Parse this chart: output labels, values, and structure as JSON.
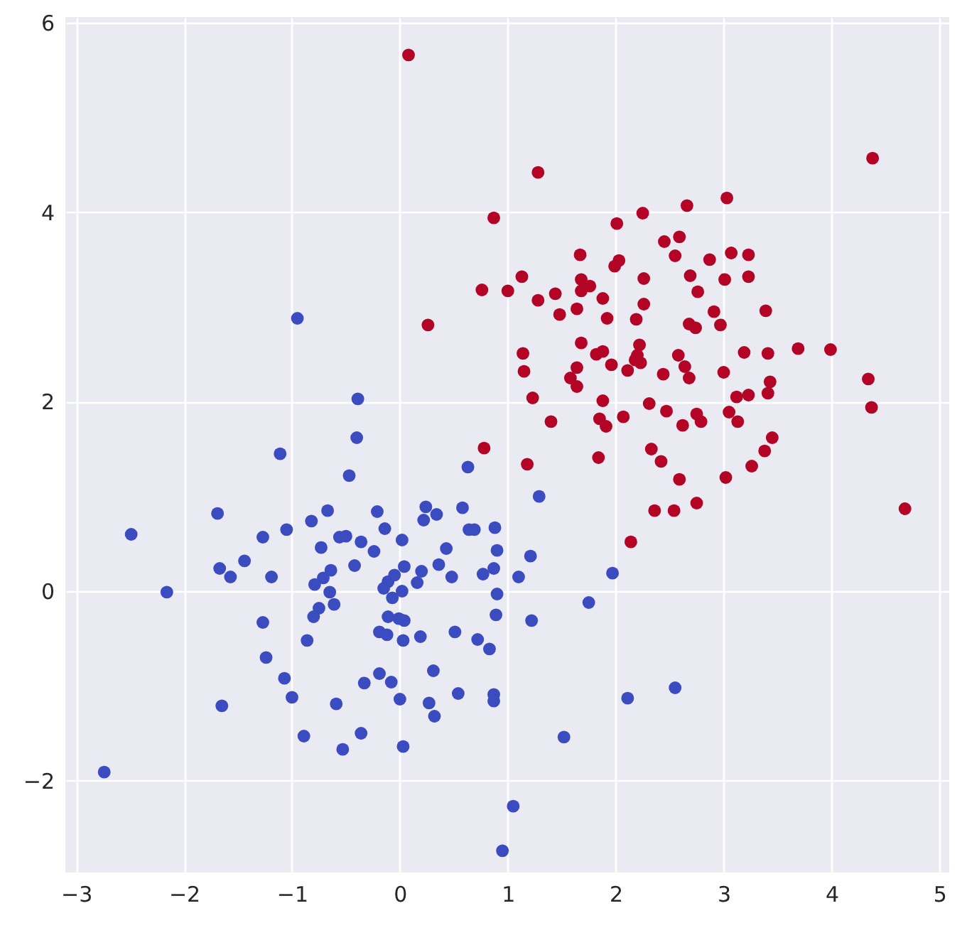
{
  "chart_data": {
    "type": "scatter",
    "xlim": [
      -3.1,
      5.09
    ],
    "ylim": [
      -2.97,
      6.06
    ],
    "xticks": [
      -3,
      -2,
      -1,
      0,
      1,
      2,
      3,
      4,
      5
    ],
    "yticks": [
      -2,
      0,
      2,
      4,
      6
    ],
    "grid": true,
    "marker": "circle",
    "series": [
      {
        "color": "#3b4cc0",
        "x": [
          -0.39,
          -0.4,
          -1.11,
          -0.47,
          -1.69,
          -0.67,
          -0.82,
          -2.49,
          -1.05,
          -1.27,
          -0.56,
          -0.5,
          -0.36,
          -0.73,
          -1.44,
          -1.67,
          -1.57,
          -1.19,
          -0.42,
          -0.64,
          -0.71,
          -0.79,
          -0.65,
          -2.16,
          -0.61,
          -0.75,
          -0.8,
          -1.27,
          -0.86,
          -1.24,
          -1.07,
          -0.33,
          -1.0,
          -1.65,
          -0.59,
          -0.89,
          -0.36,
          -0.53,
          -2.74,
          -0.95,
          -0.21,
          -0.14,
          -0.24,
          0.02,
          0.24,
          0.34,
          0.22,
          0.58,
          0.63,
          1.29,
          0.64,
          0.69,
          0.88,
          0.43,
          0.9,
          0.36,
          0.04,
          1.21,
          0.87,
          0.77,
          1.1,
          0.48,
          0.2,
          0.16,
          -0.05,
          -0.11,
          -0.15,
          0.02,
          -0.07,
          0.9,
          0.89,
          1.22,
          1.75,
          -0.11,
          -0.01,
          0.04,
          -0.19,
          -0.12,
          0.03,
          0.19,
          0.51,
          0.72,
          0.83,
          0.31,
          -0.19,
          -0.08,
          0.0,
          0.27,
          0.32,
          0.54,
          0.87,
          0.87,
          0.03,
          1.52,
          1.05,
          0.95,
          1.97,
          2.11,
          2.55
        ],
        "values": [
          2.03,
          1.62,
          1.45,
          1.22,
          0.82,
          0.85,
          0.74,
          0.6,
          0.65,
          0.57,
          0.57,
          0.58,
          0.52,
          0.46,
          0.32,
          0.24,
          0.15,
          0.15,
          0.27,
          0.22,
          0.14,
          0.07,
          -0.01,
          -0.01,
          -0.14,
          -0.18,
          -0.27,
          -0.33,
          -0.52,
          -0.7,
          -0.92,
          -0.97,
          -1.12,
          -1.21,
          -1.19,
          -1.53,
          -1.5,
          -1.67,
          -1.91,
          2.88,
          0.84,
          0.66,
          0.42,
          0.54,
          0.89,
          0.81,
          0.75,
          0.88,
          1.31,
          1.0,
          0.65,
          0.65,
          0.67,
          0.45,
          0.43,
          0.28,
          0.26,
          0.37,
          0.24,
          0.18,
          0.15,
          0.15,
          0.21,
          0.09,
          0.17,
          0.1,
          0.03,
          0.0,
          -0.07,
          -0.03,
          -0.25,
          -0.31,
          -0.12,
          -0.27,
          -0.29,
          -0.31,
          -0.43,
          -0.46,
          -0.52,
          -0.48,
          -0.43,
          -0.51,
          -0.61,
          -0.84,
          -0.87,
          -0.96,
          -1.14,
          -1.18,
          -1.32,
          -1.08,
          -1.09,
          -1.16,
          -1.64,
          -1.54,
          -2.27,
          -2.74,
          0.19,
          -1.13,
          -1.02
        ]
      },
      {
        "color": "#b40426",
        "x": [
          0.08,
          1.28,
          0.87,
          1.13,
          0.76,
          1.0,
          1.28,
          1.44,
          1.48,
          0.26,
          1.14,
          4.38,
          2.66,
          3.03,
          2.25,
          2.01,
          2.45,
          2.59,
          1.67,
          2.55,
          2.87,
          3.07,
          3.23,
          1.99,
          2.03,
          1.68,
          1.76,
          1.68,
          2.26,
          2.69,
          3.01,
          3.23,
          1.88,
          2.26,
          2.76,
          1.64,
          1.92,
          2.19,
          2.91,
          3.39,
          2.68,
          2.74,
          2.97,
          1.68,
          1.82,
          1.88,
          2.22,
          2.2,
          2.18,
          2.23,
          2.58,
          3.19,
          3.41,
          3.69,
          3.99,
          1.15,
          1.64,
          1.58,
          1.64,
          1.96,
          2.11,
          2.64,
          2.68,
          2.44,
          3.0,
          3.43,
          3.41,
          4.34,
          4.37,
          1.23,
          1.88,
          3.12,
          3.23,
          1.4,
          1.85,
          1.91,
          2.07,
          2.31,
          2.47,
          2.75,
          2.79,
          2.62,
          3.05,
          3.13,
          3.45,
          3.38,
          0.78,
          1.18,
          1.84,
          2.33,
          2.42,
          2.59,
          3.02,
          3.26,
          2.36,
          2.54,
          2.75,
          4.68,
          2.14
        ],
        "values": [
          5.66,
          4.42,
          3.94,
          3.32,
          3.18,
          3.17,
          3.07,
          3.14,
          2.92,
          2.81,
          2.51,
          4.57,
          4.07,
          4.15,
          3.99,
          3.88,
          3.69,
          3.74,
          3.55,
          3.54,
          3.5,
          3.57,
          3.55,
          3.43,
          3.49,
          3.29,
          3.22,
          3.17,
          3.3,
          3.33,
          3.29,
          3.32,
          3.09,
          3.03,
          3.16,
          2.98,
          2.88,
          2.87,
          2.95,
          2.96,
          2.82,
          2.78,
          2.81,
          2.62,
          2.5,
          2.53,
          2.6,
          2.49,
          2.44,
          2.41,
          2.49,
          2.52,
          2.51,
          2.56,
          2.55,
          2.32,
          2.36,
          2.25,
          2.16,
          2.39,
          2.33,
          2.37,
          2.25,
          2.29,
          2.31,
          2.21,
          2.09,
          2.24,
          1.94,
          2.04,
          2.01,
          2.05,
          2.07,
          1.79,
          1.82,
          1.74,
          1.84,
          1.98,
          1.9,
          1.87,
          1.79,
          1.75,
          1.89,
          1.79,
          1.62,
          1.48,
          1.51,
          1.34,
          1.41,
          1.5,
          1.37,
          1.18,
          1.2,
          1.32,
          0.85,
          0.85,
          0.93,
          0.87,
          0.52
        ]
      }
    ]
  }
}
